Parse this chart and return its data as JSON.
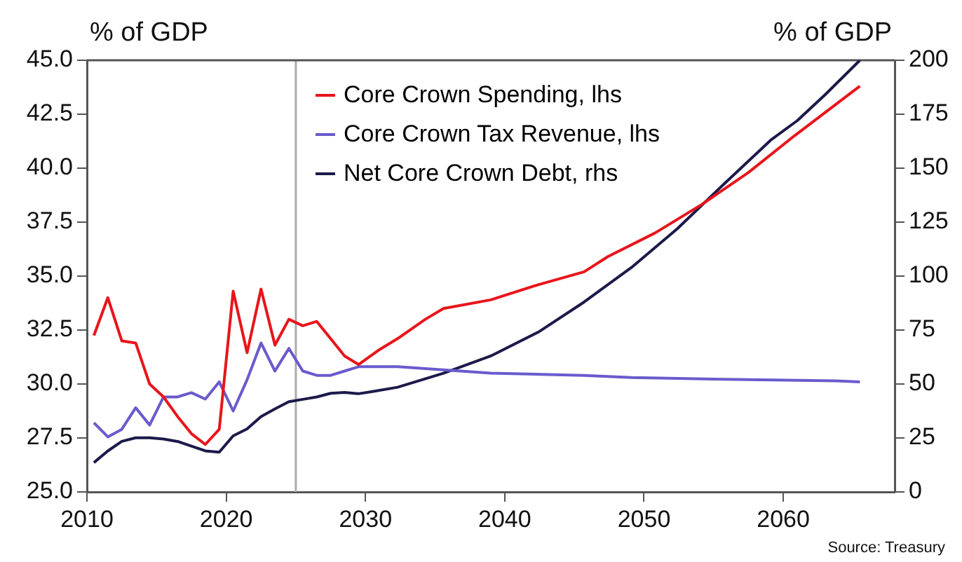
{
  "chart_data": {
    "type": "line",
    "xlabel": null,
    "ylabel": "% of GDP",
    "y2label": "% of GDP",
    "xlim": [
      2010,
      2068
    ],
    "xticks": [
      2010,
      2020,
      2030,
      2040,
      2050,
      2060
    ],
    "ylim": [
      25,
      45
    ],
    "yticks": [
      {
        "value": 25,
        "label": "25.0"
      },
      {
        "value": 27.5,
        "label": "27.5"
      },
      {
        "value": 30,
        "label": "30.0"
      },
      {
        "value": 32.5,
        "label": "32.5"
      },
      {
        "value": 35,
        "label": "35.0"
      },
      {
        "value": 37.5,
        "label": "37.5"
      },
      {
        "value": 40,
        "label": "40.0"
      },
      {
        "value": 42.5,
        "label": "42.5"
      },
      {
        "value": 45,
        "label": "45.0"
      }
    ],
    "y2lim": [
      0,
      200
    ],
    "y2ticks": [
      0,
      25,
      50,
      75,
      100,
      125,
      150,
      175,
      200
    ],
    "grid": false,
    "legend": "top",
    "marker": "none",
    "line_style": "solid",
    "ref_lines": [
      {
        "axis": "x",
        "value": 2025,
        "label": null,
        "color": "#aaaaaa"
      }
    ],
    "annotations": [
      "Source: Treasury"
    ],
    "series": [
      {
        "name": "Core Crown Spending, lhs",
        "color": "#e8151b",
        "x": [
          2010.5,
          2011.5,
          2012.5,
          2013.5,
          2014.5,
          2015.5,
          2016.5,
          2017.5,
          2018.5,
          2019.5,
          2020.5,
          2021.5,
          2022.5,
          2023.5,
          2024.5,
          2025.5,
          2026.5,
          2027.5,
          2028.5,
          2029.5,
          2030.9,
          2032.3,
          2034.3,
          2035.6,
          2039.0,
          2042.4,
          2045.7,
          2047.4,
          2050.8,
          2054.1,
          2057.5,
          2060.8,
          2065.5
        ],
        "values": [
          32.25,
          34.0,
          32.0,
          31.9,
          30.0,
          29.4,
          28.5,
          27.7,
          27.2,
          27.9,
          34.3,
          31.45,
          34.4,
          31.8,
          33.0,
          32.7,
          32.9,
          32.1,
          31.3,
          30.9,
          31.55,
          32.1,
          33.0,
          33.5,
          33.9,
          34.6,
          35.2,
          35.9,
          37.0,
          38.3,
          39.8,
          41.5,
          43.8
        ]
      },
      {
        "name": "Core Crown Tax Revenue, lhs",
        "color": "#6a5acd",
        "x": [
          2010.5,
          2011.5,
          2012.5,
          2013.5,
          2014.5,
          2015.5,
          2016.5,
          2017.5,
          2018.5,
          2019.5,
          2020.5,
          2021.5,
          2022.5,
          2023.5,
          2024.5,
          2025.5,
          2026.5,
          2027.5,
          2028.5,
          2029.5,
          2032.3,
          2039.0,
          2045.7,
          2049.1,
          2057.5,
          2063.8,
          2065.5
        ],
        "values": [
          28.2,
          27.55,
          27.9,
          28.9,
          28.1,
          29.4,
          29.4,
          29.6,
          29.3,
          30.1,
          28.75,
          30.2,
          31.9,
          30.6,
          31.65,
          30.6,
          30.4,
          30.4,
          30.6,
          30.8,
          30.8,
          30.5,
          30.4,
          30.3,
          30.2,
          30.15,
          30.1
        ]
      },
      {
        "name": "Net Core Crown Debt, rhs",
        "color": "#1c1a4a",
        "axis": "y2",
        "x": [
          2010.5,
          2011.5,
          2012.5,
          2013.5,
          2014.5,
          2015.5,
          2016.5,
          2017.5,
          2018.5,
          2019.5,
          2020.5,
          2021.5,
          2022.5,
          2023.5,
          2024.5,
          2025.5,
          2026.5,
          2027.5,
          2028.5,
          2029.5,
          2030.5,
          2032.3,
          2035.6,
          2039.0,
          2042.4,
          2045.7,
          2049.1,
          2052.4,
          2055.8,
          2059.1,
          2061.0,
          2063.0,
          2065.5
        ],
        "values": [
          13.6,
          19.0,
          23.4,
          25.1,
          25.1,
          24.5,
          23.4,
          21.2,
          19.0,
          18.4,
          26.0,
          29.2,
          34.9,
          38.5,
          41.8,
          42.9,
          44.0,
          45.7,
          46.1,
          45.5,
          46.5,
          48.5,
          55,
          63,
          74,
          88,
          104,
          122,
          143,
          163,
          172,
          184,
          200
        ]
      }
    ]
  }
}
